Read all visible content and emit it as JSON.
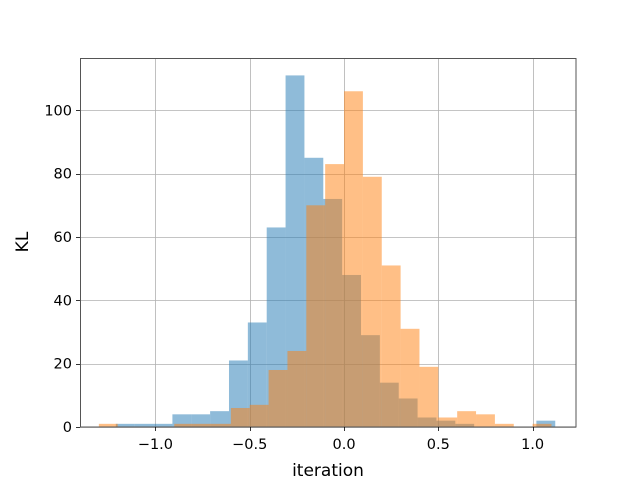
{
  "chart_data": {
    "type": "bar",
    "title": "",
    "xlabel": "iteration",
    "ylabel": "KL",
    "xlim": [
      -1.4,
      1.23
    ],
    "ylim": [
      0,
      116.5
    ],
    "grid": true,
    "xticks": [
      -1.0,
      -0.5,
      0.0,
      0.5,
      1.0
    ],
    "xtick_labels": [
      "−1.0",
      "−0.5",
      "0.0",
      "0.5",
      "1.0"
    ],
    "yticks": [
      0,
      20,
      40,
      60,
      80,
      100
    ],
    "ytick_labels": [
      "0",
      "20",
      "40",
      "60",
      "80",
      "100"
    ],
    "series": [
      {
        "color": "#1f77b4",
        "opacity": 0.5,
        "bins": [
          {
            "x0": -1.21,
            "x1": -1.11,
            "value": 1
          },
          {
            "x0": -1.11,
            "x1": -1.01,
            "value": 1
          },
          {
            "x0": -1.01,
            "x1": -0.91,
            "value": 1
          },
          {
            "x0": -0.91,
            "x1": -0.81,
            "value": 4
          },
          {
            "x0": -0.81,
            "x1": -0.71,
            "value": 4
          },
          {
            "x0": -0.71,
            "x1": -0.61,
            "value": 5
          },
          {
            "x0": -0.61,
            "x1": -0.51,
            "value": 21
          },
          {
            "x0": -0.51,
            "x1": -0.41,
            "value": 33
          },
          {
            "x0": -0.41,
            "x1": -0.31,
            "value": 63
          },
          {
            "x0": -0.31,
            "x1": -0.21,
            "value": 111
          },
          {
            "x0": -0.21,
            "x1": -0.11,
            "value": 85
          },
          {
            "x0": -0.11,
            "x1": -0.01,
            "value": 72
          },
          {
            "x0": -0.01,
            "x1": 0.09,
            "value": 48
          },
          {
            "x0": 0.09,
            "x1": 0.19,
            "value": 29
          },
          {
            "x0": 0.19,
            "x1": 0.29,
            "value": 14
          },
          {
            "x0": 0.29,
            "x1": 0.39,
            "value": 9
          },
          {
            "x0": 0.39,
            "x1": 0.49,
            "value": 3
          },
          {
            "x0": 0.49,
            "x1": 0.59,
            "value": 2
          },
          {
            "x0": 0.59,
            "x1": 0.69,
            "value": 1
          },
          {
            "x0": 1.02,
            "x1": 1.12,
            "value": 2
          }
        ]
      },
      {
        "color": "#ff7f0e",
        "opacity": 0.5,
        "bins": [
          {
            "x0": -1.3,
            "x1": -1.2,
            "value": 1
          },
          {
            "x0": -0.9,
            "x1": -0.8,
            "value": 1
          },
          {
            "x0": -0.8,
            "x1": -0.7,
            "value": 1
          },
          {
            "x0": -0.7,
            "x1": -0.6,
            "value": 1
          },
          {
            "x0": -0.6,
            "x1": -0.5,
            "value": 6
          },
          {
            "x0": -0.5,
            "x1": -0.4,
            "value": 7
          },
          {
            "x0": -0.4,
            "x1": -0.3,
            "value": 18
          },
          {
            "x0": -0.3,
            "x1": -0.2,
            "value": 24
          },
          {
            "x0": -0.2,
            "x1": -0.1,
            "value": 70
          },
          {
            "x0": -0.1,
            "x1": 0.0,
            "value": 83
          },
          {
            "x0": 0.0,
            "x1": 0.1,
            "value": 106
          },
          {
            "x0": 0.1,
            "x1": 0.2,
            "value": 79
          },
          {
            "x0": 0.2,
            "x1": 0.3,
            "value": 51
          },
          {
            "x0": 0.3,
            "x1": 0.4,
            "value": 31
          },
          {
            "x0": 0.4,
            "x1": 0.5,
            "value": 19
          },
          {
            "x0": 0.5,
            "x1": 0.6,
            "value": 3
          },
          {
            "x0": 0.6,
            "x1": 0.7,
            "value": 5
          },
          {
            "x0": 0.7,
            "x1": 0.8,
            "value": 4
          },
          {
            "x0": 0.8,
            "x1": 0.9,
            "value": 1
          },
          {
            "x0": 1.0,
            "x1": 1.1,
            "value": 1
          }
        ]
      }
    ]
  }
}
